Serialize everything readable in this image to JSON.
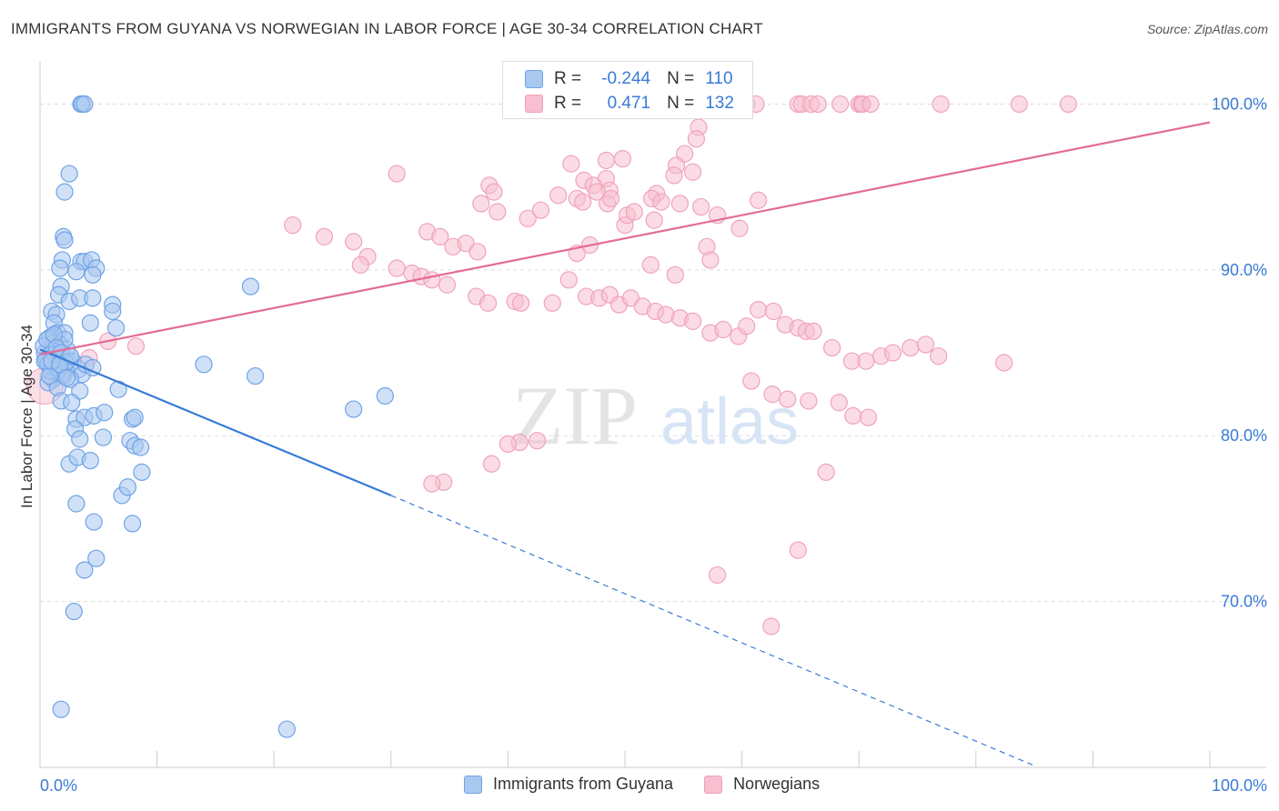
{
  "title": "IMMIGRANTS FROM GUYANA VS NORWEGIAN IN LABOR FORCE | AGE 30-34 CORRELATION CHART",
  "source": "Source: ZipAtlas.com",
  "watermark": {
    "zip": "ZIP",
    "atlas": "atlas"
  },
  "legend_stats": [
    {
      "r_label": "R =",
      "r_value": "-0.244",
      "n_label": "N =",
      "n_value": "110",
      "color": "#6fa3e6"
    },
    {
      "r_label": "R =",
      "r_value": "0.471",
      "n_label": "N =",
      "n_value": "132",
      "color": "#f2a0ba"
    }
  ],
  "chart_data": {
    "type": "scatter",
    "title": "IMMIGRANTS FROM GUYANA VS NORWEGIAN IN LABOR FORCE | AGE 30-34 CORRELATION CHART",
    "xlabel": "",
    "ylabel": "In Labor Force | Age 30-34",
    "x_tick_labels": [
      "0.0%",
      "100.0%"
    ],
    "y_tick_labels": [
      "70.0%",
      "80.0%",
      "90.0%",
      "100.0%"
    ],
    "xlim": [
      0,
      100
    ],
    "ylim": [
      60,
      102
    ],
    "grid": true,
    "colors": {
      "blue": "#3a7bd5",
      "blue_fill": "#a9c8f0",
      "pink": "#e46b94",
      "pink_fill": "#f7bfd0"
    },
    "series": [
      {
        "name": "Immigrants from Guyana",
        "trend": {
          "x": [
            0,
            30
          ],
          "y": [
            85.2,
            76.4
          ],
          "dashed_to": [
            85,
            60.1
          ]
        },
        "points": [
          [
            3.5,
            100
          ],
          [
            3.6,
            100
          ],
          [
            3.8,
            100
          ],
          [
            2.5,
            95.8
          ],
          [
            2.1,
            94.7
          ],
          [
            2,
            92
          ],
          [
            2.1,
            91.8
          ],
          [
            1.9,
            90.6
          ],
          [
            1.7,
            90.1
          ],
          [
            3.5,
            90.5
          ],
          [
            3.8,
            90.5
          ],
          [
            4.4,
            90.6
          ],
          [
            4.8,
            90.1
          ],
          [
            3.1,
            89.9
          ],
          [
            4.5,
            89.7
          ],
          [
            1.8,
            89
          ],
          [
            1.6,
            88.5
          ],
          [
            2.5,
            88.1
          ],
          [
            3.4,
            88.3
          ],
          [
            4.5,
            88.3
          ],
          [
            6.2,
            87.9
          ],
          [
            6.2,
            87.5
          ],
          [
            1,
            87.5
          ],
          [
            1.4,
            87.3
          ],
          [
            1.2,
            86.8
          ],
          [
            4.3,
            86.8
          ],
          [
            1.5,
            86.2
          ],
          [
            2.1,
            86.2
          ],
          [
            1,
            86
          ],
          [
            0.8,
            85.9
          ],
          [
            1.2,
            85.6
          ],
          [
            1.7,
            85.5
          ],
          [
            2.3,
            85.2
          ],
          [
            0.4,
            85
          ],
          [
            0.9,
            85
          ],
          [
            1.3,
            84.8
          ],
          [
            1.6,
            84.7
          ],
          [
            1.9,
            84.6
          ],
          [
            2.4,
            84.5
          ],
          [
            2.8,
            84.5
          ],
          [
            0.6,
            84.4
          ],
          [
            1,
            84.2
          ],
          [
            1.4,
            84.1
          ],
          [
            2.2,
            84
          ],
          [
            3.3,
            84
          ],
          [
            1.5,
            83.8
          ],
          [
            3.6,
            83.7
          ],
          [
            2,
            83.6
          ],
          [
            2.6,
            83.4
          ],
          [
            1.1,
            83.4
          ],
          [
            0.7,
            83.2
          ],
          [
            1.5,
            82.9
          ],
          [
            3.4,
            82.7
          ],
          [
            6.7,
            82.8
          ],
          [
            3.9,
            84.3
          ],
          [
            6.5,
            86.5
          ],
          [
            1.8,
            82.1
          ],
          [
            4.5,
            84.1
          ],
          [
            14,
            84.3
          ],
          [
            18,
            89
          ],
          [
            18.4,
            83.6
          ],
          [
            29.5,
            82.4
          ],
          [
            26.8,
            81.6
          ],
          [
            2.7,
            82
          ],
          [
            3.1,
            81
          ],
          [
            3.8,
            81.1
          ],
          [
            4.6,
            81.2
          ],
          [
            5.5,
            81.4
          ],
          [
            7.9,
            81
          ],
          [
            8.1,
            81.1
          ],
          [
            3,
            80.4
          ],
          [
            3.4,
            79.8
          ],
          [
            5.4,
            79.9
          ],
          [
            7.7,
            79.7
          ],
          [
            8.1,
            79.4
          ],
          [
            8.6,
            79.3
          ],
          [
            2.5,
            78.3
          ],
          [
            3.2,
            78.7
          ],
          [
            4.3,
            78.5
          ],
          [
            8.7,
            77.8
          ],
          [
            7,
            76.4
          ],
          [
            7.5,
            76.9
          ],
          [
            3.1,
            75.9
          ],
          [
            4.6,
            74.8
          ],
          [
            7.9,
            74.7
          ],
          [
            4.8,
            72.6
          ],
          [
            3.8,
            71.9
          ],
          [
            2.9,
            69.4
          ],
          [
            1.8,
            63.5
          ],
          [
            21.1,
            62.3
          ],
          [
            0.3,
            85.4
          ],
          [
            0.5,
            84.6
          ],
          [
            0.7,
            84.3
          ],
          [
            0.9,
            83.9
          ],
          [
            1.1,
            85.1
          ],
          [
            1.3,
            84.9
          ],
          [
            1.6,
            84
          ],
          [
            1.9,
            83.7
          ],
          [
            2.1,
            85.8
          ],
          [
            0.6,
            85.8
          ],
          [
            1.2,
            86.1
          ],
          [
            1.4,
            85.3
          ],
          [
            1.8,
            85
          ],
          [
            2.2,
            84.4
          ],
          [
            0.4,
            84.5
          ],
          [
            0.8,
            83.6
          ],
          [
            2.6,
            84.8
          ],
          [
            1,
            84.5
          ],
          [
            1.7,
            84.3
          ],
          [
            2.3,
            83.5
          ]
        ]
      },
      {
        "name": "Norwegians",
        "trend": {
          "x": [
            0,
            100
          ],
          "y": [
            84.9,
            98.9
          ]
        },
        "points": [
          [
            51.5,
            100
          ],
          [
            53.7,
            100
          ],
          [
            60,
            100
          ],
          [
            60.4,
            100
          ],
          [
            61.2,
            100
          ],
          [
            64.8,
            100
          ],
          [
            65.1,
            100
          ],
          [
            65.9,
            100
          ],
          [
            66.5,
            100
          ],
          [
            68.4,
            100
          ],
          [
            70,
            100
          ],
          [
            70.2,
            100
          ],
          [
            70.3,
            100
          ],
          [
            71,
            100
          ],
          [
            77,
            100
          ],
          [
            83.7,
            100
          ],
          [
            87.9,
            100
          ],
          [
            56.3,
            98.6
          ],
          [
            56.1,
            97.9
          ],
          [
            55.1,
            97
          ],
          [
            54.4,
            96.3
          ],
          [
            49.8,
            96.7
          ],
          [
            48.4,
            96.6
          ],
          [
            45.4,
            96.4
          ],
          [
            55.8,
            95.9
          ],
          [
            54.2,
            95.7
          ],
          [
            46.5,
            95.4
          ],
          [
            48.4,
            95.5
          ],
          [
            47.3,
            95.1
          ],
          [
            48.7,
            94.8
          ],
          [
            52.7,
            94.6
          ],
          [
            52.3,
            94.3
          ],
          [
            53.1,
            94.1
          ],
          [
            48.5,
            94
          ],
          [
            50,
            92.7
          ],
          [
            57.9,
            93.3
          ],
          [
            61.4,
            94.2
          ],
          [
            57,
            91.4
          ],
          [
            47,
            91.5
          ],
          [
            45.9,
            91
          ],
          [
            52.2,
            90.3
          ],
          [
            54.3,
            89.7
          ],
          [
            57.3,
            90.6
          ],
          [
            30.5,
            95.8
          ],
          [
            37.7,
            94
          ],
          [
            38.4,
            95.1
          ],
          [
            38.8,
            94.7
          ],
          [
            39.1,
            93.5
          ],
          [
            41.7,
            93.1
          ],
          [
            42.8,
            93.6
          ],
          [
            44.3,
            94.5
          ],
          [
            45.9,
            94.3
          ],
          [
            46.4,
            94.1
          ],
          [
            47.6,
            94.7
          ],
          [
            48.8,
            94.3
          ],
          [
            50.2,
            93.3
          ],
          [
            50.8,
            93.5
          ],
          [
            52.5,
            93
          ],
          [
            54.7,
            94
          ],
          [
            56.5,
            93.8
          ],
          [
            59.8,
            92.5
          ],
          [
            21.6,
            92.7
          ],
          [
            24.3,
            92
          ],
          [
            26.8,
            91.7
          ],
          [
            28,
            90.8
          ],
          [
            33.1,
            92.3
          ],
          [
            34.2,
            92
          ],
          [
            35.3,
            91.4
          ],
          [
            36.4,
            91.6
          ],
          [
            37.4,
            91.1
          ],
          [
            27.4,
            90.3
          ],
          [
            30.5,
            90.1
          ],
          [
            31.8,
            89.8
          ],
          [
            32.6,
            89.6
          ],
          [
            33.5,
            89.4
          ],
          [
            34.8,
            89.1
          ],
          [
            37.3,
            88.4
          ],
          [
            38.3,
            88
          ],
          [
            40.6,
            88.1
          ],
          [
            41.1,
            88
          ],
          [
            43.8,
            88
          ],
          [
            45.2,
            89.4
          ],
          [
            46.7,
            88.4
          ],
          [
            47.8,
            88.3
          ],
          [
            48.7,
            88.5
          ],
          [
            49.5,
            87.9
          ],
          [
            50.5,
            88.3
          ],
          [
            51.5,
            87.8
          ],
          [
            52.6,
            87.5
          ],
          [
            53.5,
            87.3
          ],
          [
            54.7,
            87.1
          ],
          [
            55.8,
            86.9
          ],
          [
            57.3,
            86.2
          ],
          [
            58.4,
            86.4
          ],
          [
            59.7,
            86
          ],
          [
            60.4,
            86.6
          ],
          [
            61.4,
            87.6
          ],
          [
            62.7,
            87.5
          ],
          [
            63.7,
            86.7
          ],
          [
            64.8,
            86.5
          ],
          [
            65.5,
            86.3
          ],
          [
            66.1,
            86.3
          ],
          [
            67.7,
            85.3
          ],
          [
            69.4,
            84.5
          ],
          [
            70.6,
            84.5
          ],
          [
            71.9,
            84.8
          ],
          [
            72.9,
            85
          ],
          [
            74.4,
            85.3
          ],
          [
            75.7,
            85.5
          ],
          [
            76.8,
            84.8
          ],
          [
            82.4,
            84.4
          ],
          [
            60.8,
            83.3
          ],
          [
            62.6,
            82.5
          ],
          [
            63.9,
            82.2
          ],
          [
            65.7,
            82.1
          ],
          [
            68.3,
            82
          ],
          [
            69.5,
            81.2
          ],
          [
            70.8,
            81.1
          ],
          [
            42.5,
            79.7
          ],
          [
            41,
            79.6
          ],
          [
            40,
            79.5
          ],
          [
            38.6,
            78.3
          ],
          [
            34.5,
            77.2
          ],
          [
            33.5,
            77.1
          ],
          [
            67.2,
            77.8
          ],
          [
            64.8,
            73.1
          ],
          [
            57.9,
            71.6
          ],
          [
            62.5,
            68.5
          ],
          [
            5.8,
            85.7
          ],
          [
            4.2,
            84.7
          ],
          [
            8.2,
            85.4
          ]
        ]
      }
    ]
  }
}
